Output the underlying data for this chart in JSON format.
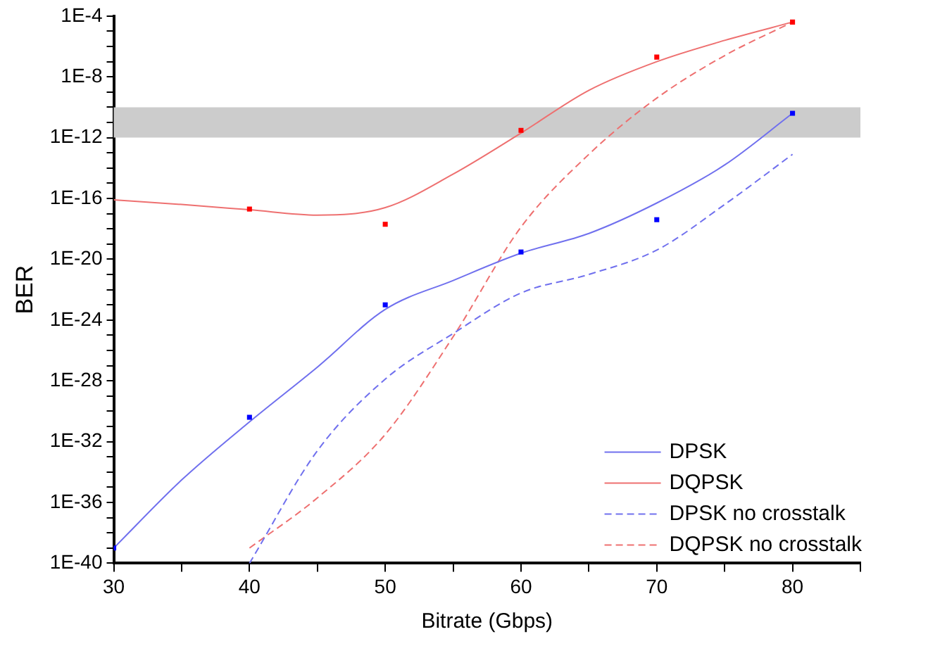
{
  "chart_data": {
    "type": "line",
    "xlabel": "Bitrate (Gbps)",
    "ylabel": "BER",
    "log": "y",
    "legend": "bottom right",
    "xlim": [
      30,
      85
    ],
    "xticks": [
      30,
      {
        "value": 35,
        "label": null
      },
      40,
      {
        "value": 45,
        "label": null
      },
      50,
      {
        "value": 55,
        "label": null
      },
      60,
      {
        "value": 65,
        "label": null
      },
      70,
      {
        "value": 75,
        "label": null
      },
      80,
      {
        "value": 85,
        "label": null
      }
    ],
    "ylim": [
      1e-40,
      0.0001
    ],
    "yticks": [
      {
        "value": 1e-40,
        "label": "1E-40"
      },
      {
        "value": 1e-39,
        "label": null
      },
      {
        "value": 1e-38,
        "label": null
      },
      {
        "value": 1e-37,
        "label": null
      },
      {
        "value": 1e-36,
        "label": "1E-36"
      },
      {
        "value": 1e-35,
        "label": null
      },
      {
        "value": 1e-34,
        "label": null
      },
      {
        "value": 1e-33,
        "label": null
      },
      {
        "value": 1e-32,
        "label": "1E-32"
      },
      {
        "value": 1e-31,
        "label": null
      },
      {
        "value": 1e-30,
        "label": null
      },
      {
        "value": 1e-29,
        "label": null
      },
      {
        "value": 1e-28,
        "label": "1E-28"
      },
      {
        "value": 1e-27,
        "label": null
      },
      {
        "value": 1e-26,
        "label": null
      },
      {
        "value": 1e-25,
        "label": null
      },
      {
        "value": 1e-24,
        "label": "1E-24"
      },
      {
        "value": 1e-23,
        "label": null
      },
      {
        "value": 1e-22,
        "label": null
      },
      {
        "value": 1e-21,
        "label": null
      },
      {
        "value": 1e-20,
        "label": "1E-20"
      },
      {
        "value": 1e-19,
        "label": null
      },
      {
        "value": 1e-18,
        "label": null
      },
      {
        "value": 1e-17,
        "label": null
      },
      {
        "value": 1e-16,
        "label": "1E-16"
      },
      {
        "value": 1e-15,
        "label": null
      },
      {
        "value": 1e-14,
        "label": null
      },
      {
        "value": 1e-13,
        "label": null
      },
      {
        "value": 1e-12,
        "label": "1E-12"
      },
      {
        "value": 1e-11,
        "label": null
      },
      {
        "value": 1e-10,
        "label": null
      },
      {
        "value": 1e-09,
        "label": null
      },
      {
        "value": 1e-08,
        "label": "1E-8"
      },
      {
        "value": 1e-07,
        "label": null
      },
      {
        "value": 1e-06,
        "label": null
      },
      {
        "value": 1e-05,
        "label": null
      },
      {
        "value": 0.0001,
        "label": "1E-4"
      }
    ],
    "bands": [
      {
        "axis": "y",
        "from": 1e-12,
        "to": 1e-10,
        "color": "#cccccc"
      }
    ],
    "series": [
      {
        "name": "DPSK",
        "type": "line",
        "color": "#7070ee",
        "line_style": "solid",
        "marker": "none",
        "x": [
          30,
          35,
          40,
          45,
          50,
          55,
          60,
          65,
          70,
          75,
          80
        ],
        "values": [
          1e-39,
          3e-35,
          2e-31,
          8e-28,
          5e-24,
          4e-22,
          2.5e-20,
          5e-19,
          5e-17,
          1.6e-14,
          4e-11
        ]
      },
      {
        "name": "DQPSK",
        "type": "line",
        "color": "#ee7070",
        "line_style": "solid",
        "marker": "none",
        "x": [
          30,
          35,
          40,
          45,
          50,
          55,
          60,
          65,
          70,
          75,
          80
        ],
        "values": [
          8e-17,
          4e-17,
          1.8e-17,
          8e-18,
          2.5e-17,
          4e-15,
          2e-12,
          1.3e-09,
          1e-07,
          2.5e-06,
          4e-05
        ]
      },
      {
        "name": "DPSK no crosstalk",
        "type": "line",
        "color": "#7070ee",
        "line_style": "dashed",
        "marker": "none",
        "x": [
          40,
          45,
          50,
          55,
          60,
          65,
          70,
          75,
          80
        ],
        "values": [
          1e-40,
          2.5e-33,
          1.3e-28,
          1.3e-25,
          6e-23,
          1e-21,
          4e-20,
          4e-17,
          8e-14
        ]
      },
      {
        "name": "DQPSK no crosstalk",
        "type": "line",
        "color": "#ee7070",
        "line_style": "dashed",
        "marker": "none",
        "x": [
          40,
          45,
          50,
          55,
          60,
          65,
          70,
          75,
          80
        ],
        "values": [
          1e-39,
          2e-36,
          3e-32,
          8e-26,
          1.3e-18,
          8e-14,
          4e-10,
          2.5e-07,
          4e-05
        ]
      },
      {
        "type": "scatter",
        "color": "#0000ff",
        "marker": "square",
        "x": [
          30,
          40,
          50,
          60,
          70,
          80
        ],
        "values": [
          1e-39,
          4e-31,
          1e-23,
          3e-20,
          4e-18,
          4e-11
        ]
      },
      {
        "type": "scatter",
        "color": "#ff0000",
        "marker": "square",
        "x": [
          40,
          50,
          60,
          70,
          80
        ],
        "values": [
          2e-17,
          2e-18,
          3e-12,
          2e-07,
          4e-05
        ]
      }
    ]
  }
}
